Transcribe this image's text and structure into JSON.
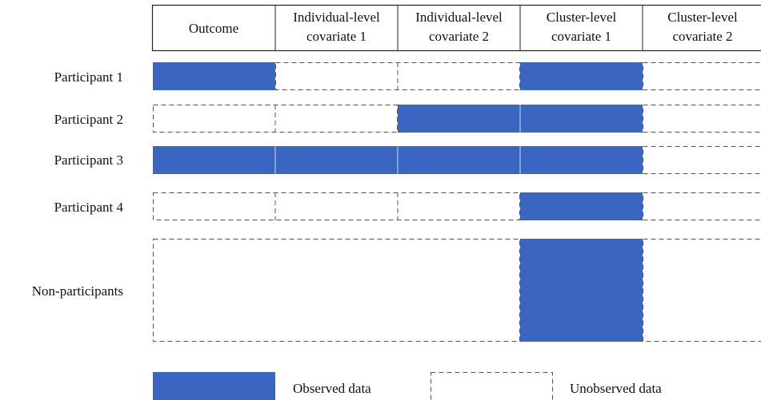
{
  "columns": [
    {
      "line1": "Outcome",
      "line2": ""
    },
    {
      "line1": "Individual-level",
      "line2": "covariate 1"
    },
    {
      "line1": "Individual-level",
      "line2": "covariate 2"
    },
    {
      "line1": "Cluster-level",
      "line2": "covariate 1"
    },
    {
      "line1": "Cluster-level",
      "line2": "covariate 2"
    }
  ],
  "rows": [
    {
      "label": "Participant 1",
      "observed": [
        true,
        false,
        false,
        true,
        false
      ]
    },
    {
      "label": "Participant 2",
      "observed": [
        false,
        false,
        true,
        true,
        false
      ]
    },
    {
      "label": "Participant 3",
      "observed": [
        true,
        true,
        true,
        true,
        false
      ]
    },
    {
      "label": "Participant 4",
      "observed": [
        false,
        false,
        false,
        true,
        false
      ]
    },
    {
      "label": "Non-participants",
      "observed": [
        false,
        false,
        false,
        true,
        false
      ]
    }
  ],
  "legend": {
    "observed_label": "Observed data",
    "unobserved_label": "Unobserved data"
  },
  "colors": {
    "observed_fill": "#3a65c0",
    "observed_divider": "#9db2df",
    "dashed_stroke": "#555555",
    "header_border": "#222222"
  }
}
